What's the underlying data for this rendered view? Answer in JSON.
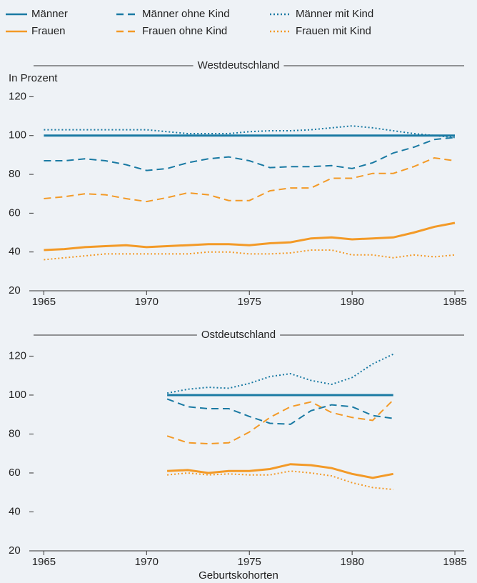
{
  "chart_data": {
    "type": "line",
    "y_label": "In Prozent",
    "x_label": "Geburtskohorten",
    "xlim": [
      1964.5,
      1985.45
    ],
    "xticks": [
      1965,
      1970,
      1975,
      1980,
      1985
    ],
    "ylim": [
      20,
      122
    ],
    "yticks": [
      20,
      40,
      60,
      80,
      100,
      120
    ],
    "series": [
      {
        "name": "Männer",
        "color": "#1a7aa3",
        "dash": "solid"
      },
      {
        "name": "Männer ohne Kind",
        "color": "#1a7aa3",
        "dash": "dashed"
      },
      {
        "name": "Männer mit Kind",
        "color": "#1a7aa3",
        "dash": "dotted"
      },
      {
        "name": "Frauen",
        "color": "#f39a27",
        "dash": "solid"
      },
      {
        "name": "Frauen ohne Kind",
        "color": "#f39a27",
        "dash": "dashed"
      },
      {
        "name": "Frauen mit Kind",
        "color": "#f39a27",
        "dash": "dotted"
      }
    ],
    "panels": [
      {
        "title": "Westdeutschland",
        "x": [
          1965,
          1966,
          1967,
          1968,
          1969,
          1970,
          1971,
          1972,
          1973,
          1974,
          1975,
          1976,
          1977,
          1978,
          1979,
          1980,
          1981,
          1982,
          1983,
          1984,
          1985
        ],
        "series": [
          {
            "values": [
              100,
              100,
              100,
              100,
              100,
              100,
              100,
              100,
              100,
              100,
              100,
              100,
              100,
              100,
              100,
              100,
              100,
              100,
              100,
              100,
              100
            ]
          },
          {
            "values": [
              87,
              87,
              88,
              87,
              85,
              82,
              83,
              86,
              88,
              89,
              87,
              83.5,
              84,
              84,
              84.5,
              83,
              86,
              91,
              94,
              98,
              99
            ]
          },
          {
            "values": [
              103,
              103,
              103,
              103,
              103,
              103,
              102,
              101,
              101,
              101,
              102,
              102.5,
              102.5,
              103,
              104,
              105,
              104,
              102.5,
              101,
              100,
              99
            ]
          },
          {
            "values": [
              41,
              41.5,
              42.5,
              43,
              43.5,
              42.5,
              43,
              43.5,
              44,
              44,
              43.5,
              44.5,
              45,
              47,
              47.5,
              46.5,
              47,
              47.5,
              50,
              53,
              55
            ]
          },
          {
            "values": [
              67.5,
              68.5,
              70,
              69.5,
              67.5,
              66,
              68,
              70.5,
              69.5,
              66.5,
              66.5,
              71.5,
              73,
              73,
              78,
              78,
              80.5,
              80.5,
              84,
              88.5,
              87
            ]
          },
          {
            "values": [
              36,
              37,
              38,
              39,
              39,
              39,
              39,
              39,
              40,
              40,
              39,
              39,
              39.5,
              41,
              41,
              38.5,
              38.5,
              37,
              38.5,
              37.5,
              38.5
            ]
          }
        ]
      },
      {
        "title": "Ostdeutschland",
        "x": [
          1971,
          1972,
          1973,
          1974,
          1975,
          1976,
          1977,
          1978,
          1979,
          1980,
          1981,
          1982
        ],
        "series": [
          {
            "values": [
              100,
              100,
              100,
              100,
              100,
              100,
              100,
              100,
              100,
              100,
              100,
              100
            ]
          },
          {
            "values": [
              98,
              94,
              93,
              93,
              89,
              85.5,
              85,
              92,
              95,
              94,
              89.5,
              88
            ]
          },
          {
            "values": [
              101,
              103,
              104,
              103.5,
              106,
              109.5,
              111,
              107.5,
              105.5,
              109,
              116,
              121
            ]
          },
          {
            "values": [
              61,
              61.5,
              60,
              61,
              61,
              62,
              64.5,
              64,
              62.5,
              59.5,
              57.5,
              59.5
            ]
          },
          {
            "values": [
              79,
              75.5,
              75,
              75.5,
              81,
              88.5,
              94,
              96.5,
              91,
              88.5,
              87,
              97.5
            ]
          },
          {
            "values": [
              59,
              60,
              59,
              59.5,
              59,
              59,
              61,
              60,
              58.5,
              55,
              52.5,
              51.5
            ]
          }
        ]
      }
    ]
  }
}
